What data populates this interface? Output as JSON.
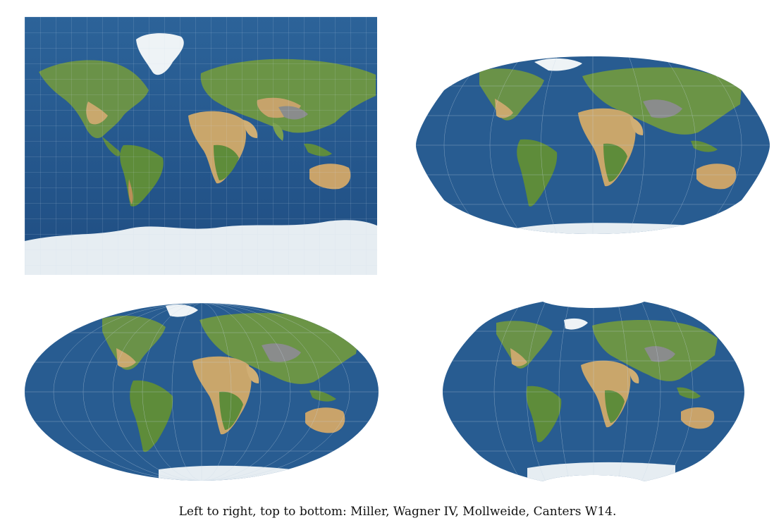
{
  "caption": "Left to right, top to bottom: Miller, Wagner IV, Mollweide, Canters W14.",
  "maps": [
    {
      "projection": "Miller"
    },
    {
      "projection": "Wagner IV"
    },
    {
      "projection": "Mollweide"
    },
    {
      "projection": "Canters W14"
    }
  ],
  "colors": {
    "ocean": "#2a5f93",
    "ocean_deep": "#1f4e84",
    "land_green": "#5d8c3c",
    "land_dry": "#c8a46a",
    "ice": "#e8eef3",
    "graticule": "#c9d8e6"
  }
}
